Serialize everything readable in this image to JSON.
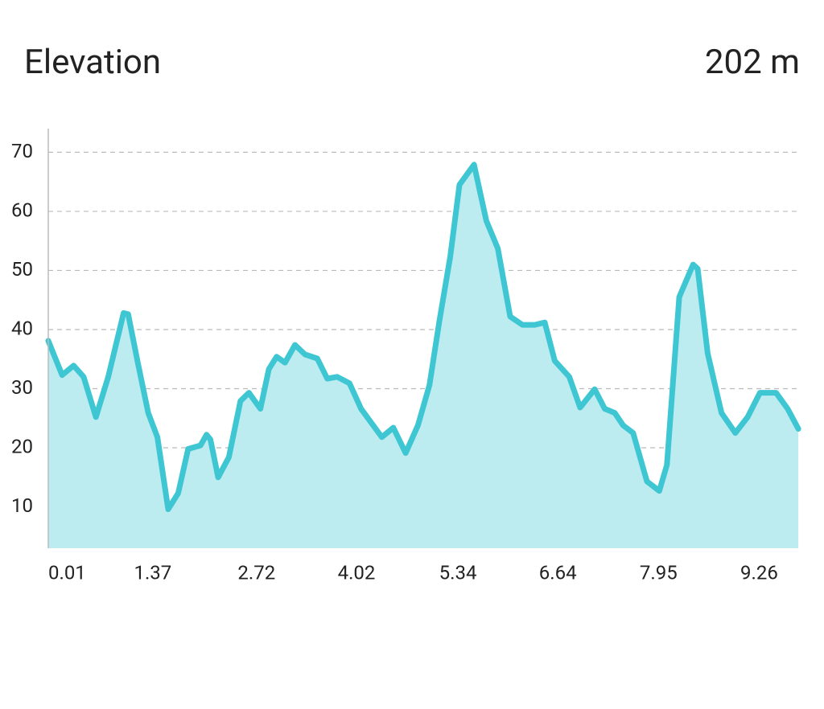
{
  "chart_data": {
    "type": "area",
    "title": "Elevation",
    "summary": "202 m",
    "x": [
      0.01,
      0.19,
      0.34,
      0.47,
      0.63,
      0.79,
      0.99,
      1.05,
      1.17,
      1.31,
      1.43,
      1.57,
      1.7,
      1.83,
      1.99,
      2.07,
      2.12,
      2.22,
      2.36,
      2.51,
      2.62,
      2.77,
      2.88,
      2.98,
      3.09,
      3.22,
      3.35,
      3.51,
      3.64,
      3.77,
      3.93,
      4.08,
      4.35,
      4.5,
      4.66,
      4.82,
      4.97,
      5.1,
      5.24,
      5.36,
      5.55,
      5.71,
      5.86,
      6.02,
      6.18,
      6.34,
      6.47,
      6.6,
      6.79,
      6.93,
      7.12,
      7.25,
      7.38,
      7.49,
      7.62,
      7.8,
      7.96,
      8.06,
      8.22,
      8.4,
      8.46,
      8.59,
      8.77,
      8.95,
      9.11,
      9.27,
      9.48,
      9.63,
      9.77
    ],
    "values": [
      38.1,
      32.3,
      33.9,
      32,
      25.2,
      32,
      42.8,
      42.6,
      34.7,
      25.9,
      21.8,
      9.6,
      12.3,
      19.8,
      20.4,
      22.2,
      21.4,
      15,
      18.4,
      27.9,
      29.3,
      26.6,
      33.3,
      35.4,
      34.4,
      37.4,
      35.8,
      35.1,
      31.7,
      32,
      30.9,
      26.6,
      21.8,
      23.4,
      19.1,
      23.8,
      30.6,
      41.5,
      52.3,
      64.5,
      67.9,
      58.4,
      53.7,
      42.2,
      40.8,
      40.8,
      41.2,
      34.7,
      32,
      26.8,
      29.9,
      26.6,
      25.9,
      23.8,
      22.5,
      14.3,
      12.7,
      17.1,
      45.5,
      51,
      50.3,
      36,
      25.9,
      22.5,
      25.2,
      29.3,
      29.3,
      26.6,
      23.2
    ],
    "color": "#3ec6d3",
    "fill": "#bcebf0",
    "xlim": [
      0.01,
      9.8
    ],
    "xticks": [
      0.01,
      1.37,
      2.72,
      4.02,
      5.34,
      6.64,
      7.95,
      9.26
    ],
    "ylim": [
      3,
      74
    ],
    "yticks": [
      10,
      20,
      30,
      40,
      50,
      60,
      70
    ],
    "grid": true
  }
}
